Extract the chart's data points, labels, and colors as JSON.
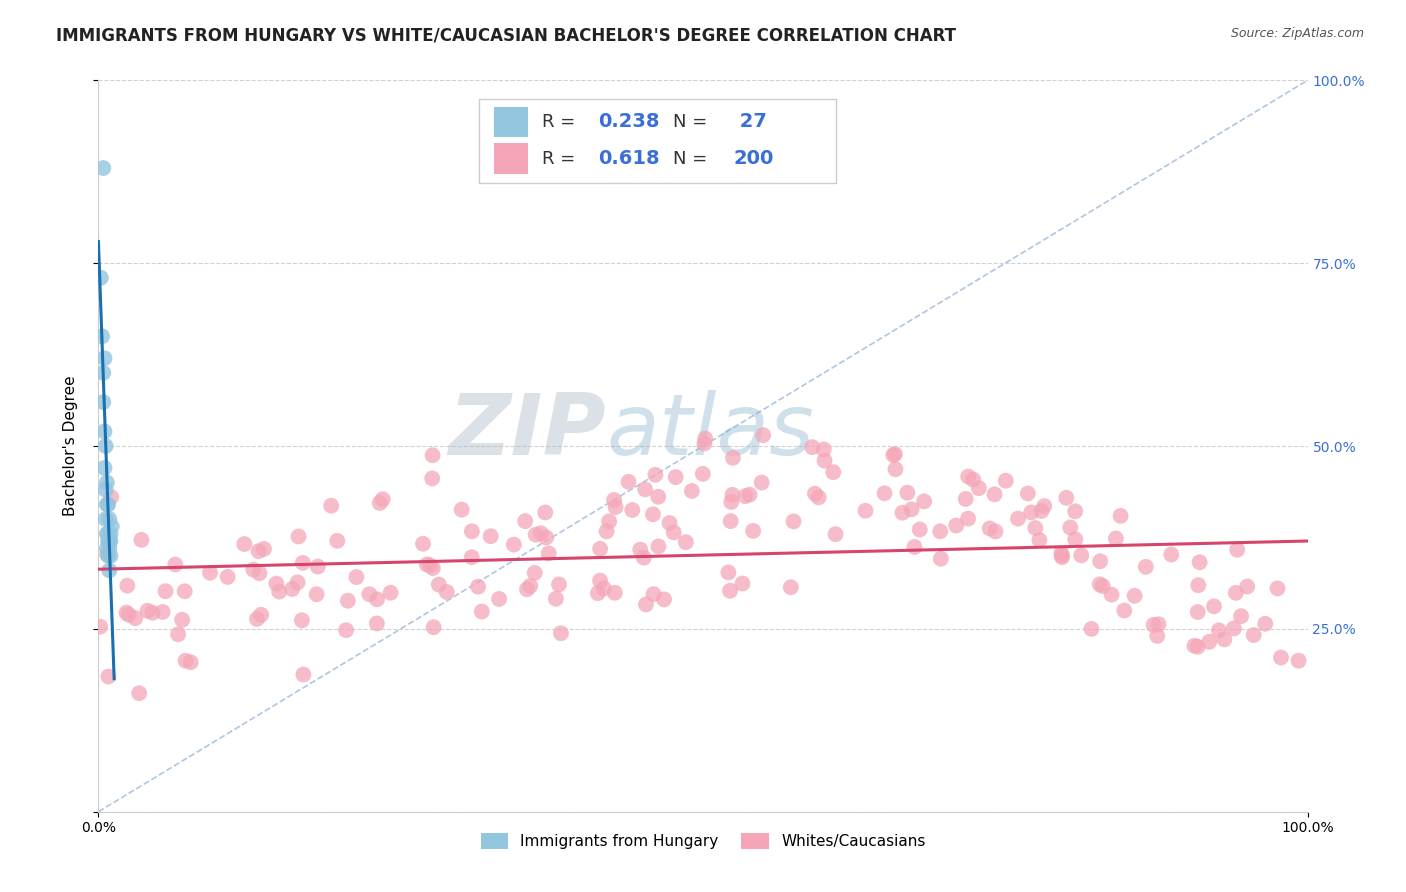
{
  "title": "IMMIGRANTS FROM HUNGARY VS WHITE/CAUCASIAN BACHELOR'S DEGREE CORRELATION CHART",
  "source": "Source: ZipAtlas.com",
  "ylabel": "Bachelor's Degree",
  "xlim": [
    0.0,
    1.0
  ],
  "ylim": [
    0.0,
    1.0
  ],
  "right_ytick_vals": [
    0.25,
    0.5,
    0.75,
    1.0
  ],
  "right_ytick_labels": [
    "25.0%",
    "50.0%",
    "75.0%",
    "100.0%"
  ],
  "blue_color": "#92c5de",
  "blue_line_color": "#1a6faf",
  "pink_color": "#f4a6b8",
  "pink_line_color": "#d6456b",
  "grid_color": "#cccccc",
  "background_color": "#ffffff",
  "watermark_zip": "ZIP",
  "watermark_atlas": "atlas",
  "blue_r": 0.238,
  "pink_r": 0.618,
  "blue_n": 27,
  "pink_n": 200,
  "title_fontsize": 12,
  "label_fontsize": 11,
  "tick_fontsize": 10,
  "legend_fontsize": 13
}
